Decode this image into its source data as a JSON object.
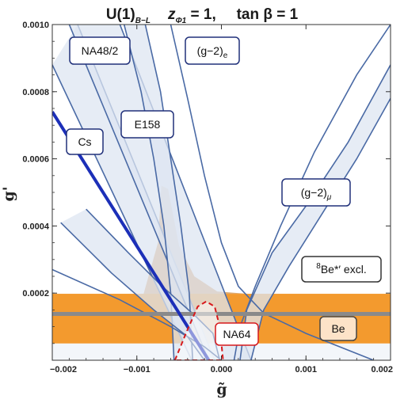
{
  "chart_data": {
    "type": "area",
    "title": "U(1)B−L,   zΦ1 = 1,   tan β = 1",
    "title_parts": {
      "main": "U(1)",
      "main_sub": "B−L",
      "z_part": "z",
      "z_sub": "Φ1",
      "z_value": " = 1,   ",
      "tan_part": "tan β = 1"
    },
    "xlabel": "g̃",
    "ylabel": "g'",
    "xlim": [
      -0.002,
      0.002
    ],
    "ylim": [
      0,
      0.001
    ],
    "x_ticks": [
      {
        "value": -0.002,
        "label": "−0.002"
      },
      {
        "value": -0.001,
        "label": "−0.001"
      },
      {
        "value": 0.0,
        "label": "0.000"
      },
      {
        "value": 0.001,
        "label": "0.001"
      },
      {
        "value": 0.002,
        "label": "0.002"
      }
    ],
    "y_ticks": [
      {
        "value": 0.0002,
        "label": "0.0002"
      },
      {
        "value": 0.0004,
        "label": "0.0004"
      },
      {
        "value": 0.0006,
        "label": "0.0006"
      },
      {
        "value": 0.0008,
        "label": "0.0008"
      },
      {
        "value": 0.001,
        "label": "0.0010"
      }
    ],
    "colors": {
      "band_fill": "#dde6f2",
      "band_edge": "#4a6aa5",
      "orange": "#f39a2e",
      "orange_triangle": "#d9a060",
      "gray_line": "#8a8a8a",
      "cs_line": "#1c2fb8",
      "na64_edge": "#d7191c",
      "label_border": "#20307a",
      "be_label_fill": "#fde3c8"
    },
    "regions": {
      "be_band": {
        "y_min": 5e-05,
        "y_max": 0.000198
      },
      "be_central_line": {
        "y": 0.000138
      },
      "e158_band": {
        "edge1": [
          [
            -0.0018,
            0.001
          ],
          [
            -0.00015,
            0.0
          ]
        ],
        "edge2": [
          [
            -0.0012,
            0.001
          ],
          [
            0.00035,
            0.0
          ]
        ]
      },
      "na48_band": {
        "edge1": [
          [
            -0.002,
            0.00088
          ],
          [
            -0.00035,
            0.0
          ]
        ],
        "edge2": [
          [
            -0.0017,
            0.001
          ],
          [
            -8e-05,
            0.0
          ]
        ]
      },
      "g2e_band": {
        "edge1": [
          [
            -0.00115,
            0.001
          ],
          [
            -0.00065,
            0.0002
          ]
        ],
        "edge2": [
          [
            -0.0009,
            0.001
          ],
          [
            -0.0004,
            0.0002
          ]
        ]
      },
      "g2mu_band": {
        "left_edge": [
          [
            -0.0017,
            0.00045
          ],
          [
            0.0001,
            8e-05
          ]
        ],
        "right_edge": [
          [
            0.0001,
            8e-05
          ],
          [
            0.00195,
            0.00083
          ]
        ]
      },
      "cs_line": [
        [
          -0.002,
          0.00074
        ],
        [
          -0.00015,
          0.0
        ]
      ],
      "be_triangle_upper_peak": {
        "x": -0.00068,
        "y": 0.00052
      },
      "na64_region": {
        "x": [
          -0.00055,
          2e-05
        ],
        "y": [
          0.0,
          0.000175
        ]
      }
    },
    "annotations": [
      {
        "id": "na48",
        "text": "NA48/2",
        "sub": ""
      },
      {
        "id": "g2e",
        "text": "(g−2)",
        "sub": "e"
      },
      {
        "id": "e158",
        "text": "E158",
        "sub": ""
      },
      {
        "id": "cs",
        "text": "Cs",
        "sub": ""
      },
      {
        "id": "g2mu",
        "text": "(g−2)",
        "sub": "μ"
      },
      {
        "id": "be8",
        "sup": "8",
        "text": "Be*′ excl.",
        "sub": ""
      },
      {
        "id": "be",
        "text": "Be",
        "sub": ""
      },
      {
        "id": "na64",
        "text": "NA64",
        "sub": ""
      }
    ],
    "grid": false,
    "legend": "none"
  }
}
